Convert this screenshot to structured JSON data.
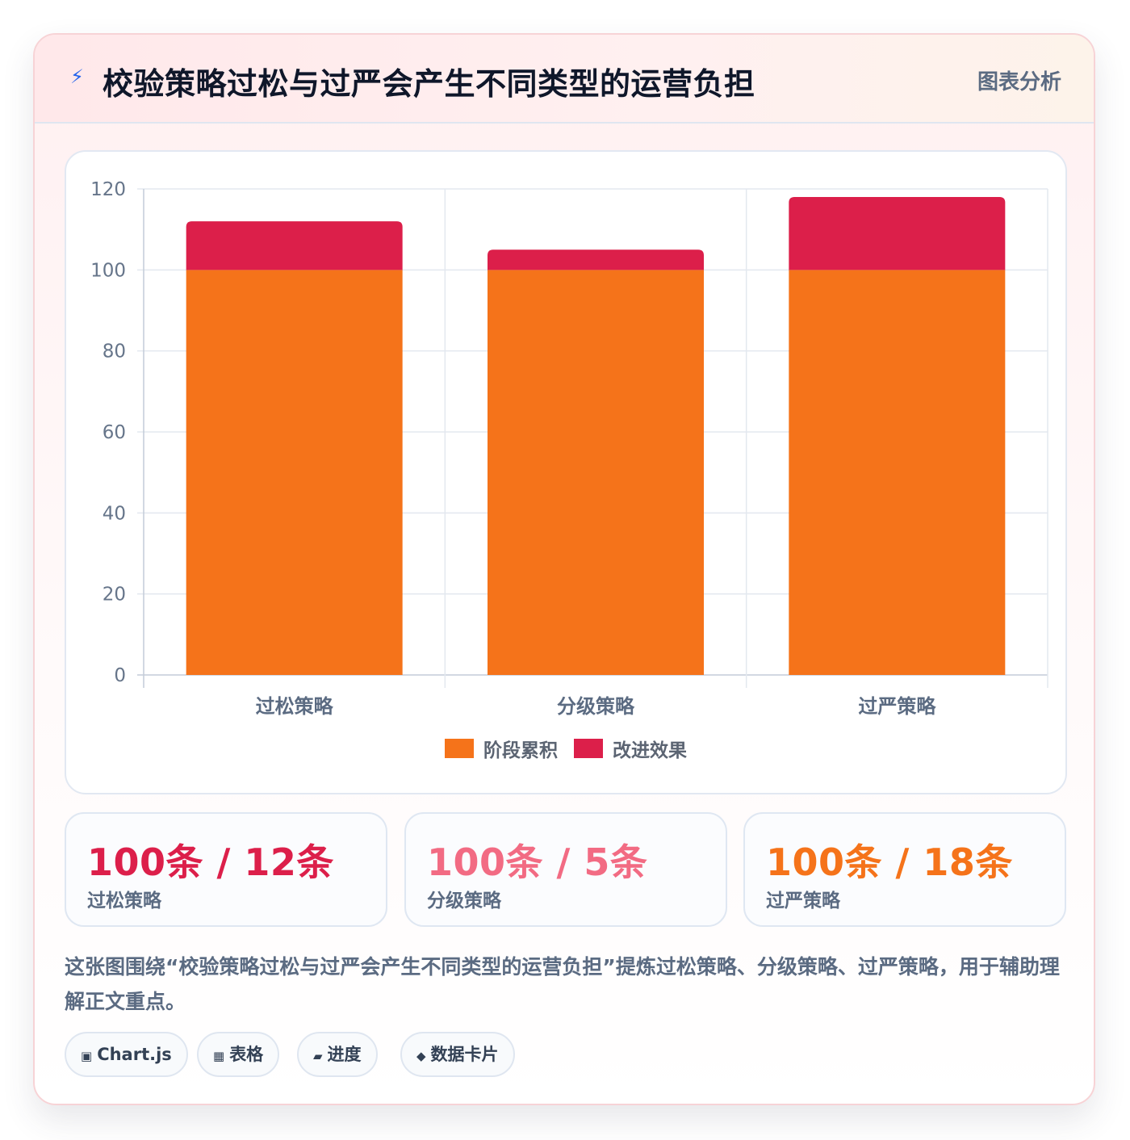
{
  "header": {
    "icon": "bolt-icon",
    "title": "校验策略过松与过严会产生不同类型的运营负担",
    "tag": "图表分析"
  },
  "chart_data": {
    "type": "bar",
    "stacked": true,
    "categories": [
      "过松策略",
      "分级策略",
      "过严策略"
    ],
    "series": [
      {
        "name": "阶段累积",
        "values": [
          100,
          100,
          100
        ],
        "color": "#f5731a"
      },
      {
        "name": "改进效果",
        "values": [
          12,
          5,
          18
        ],
        "color": "#dc1f4a"
      }
    ],
    "ylim": [
      0,
      120
    ],
    "yticks": [
      "0",
      "20",
      "40",
      "60",
      "80",
      "100",
      "120"
    ],
    "grid": true,
    "legend_position": "bottom"
  },
  "stats": [
    {
      "value": "100条 / 12条",
      "label": "过松策略",
      "color": "#dc1f4a"
    },
    {
      "value": "100条 / 5条",
      "label": "分级策略",
      "color": "#f26b83"
    },
    {
      "value": "100条 / 18条",
      "label": "过严策略",
      "color": "#f5731a"
    }
  ],
  "description": "这张图围绕“校验策略过松与过严会产生不同类型的运营负担”提炼过松策略、分级策略、过严策略，用于辅助理解正文重点。",
  "chips": [
    {
      "icon": "▣",
      "icon_name": "chart-icon",
      "label": "Chart.js"
    },
    {
      "icon": "▦",
      "icon_name": "table-icon",
      "label": "表格"
    },
    {
      "icon": "▰",
      "icon_name": "progress-icon",
      "label": "进度"
    },
    {
      "icon": "◆",
      "icon_name": "card-icon",
      "label": "数据卡片"
    }
  ]
}
